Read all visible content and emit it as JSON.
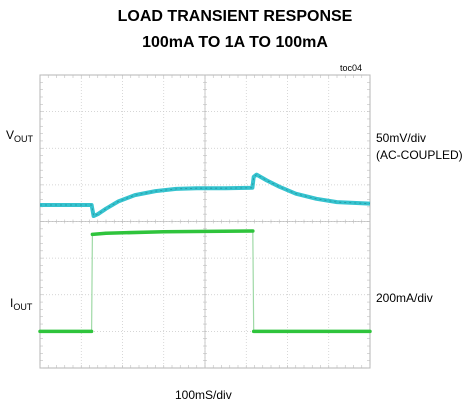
{
  "title_line1": "LOAD TRANSIENT  RESPONSE",
  "title_line2": "100mA TO 1A TO 100mA",
  "figure_id": "toc04",
  "labels": {
    "vout_main": "V",
    "vout_sub": "OUT",
    "vout_scale": "50mV/div",
    "vout_coupling": "(AC-COUPLED)",
    "iout_main": "I",
    "iout_sub": "OUT",
    "iout_scale": "200mA/div",
    "time_scale": "100mS/div"
  },
  "chart_data": {
    "type": "line",
    "grid": true,
    "divisions": {
      "x": 8,
      "y": 8
    },
    "x_range_div": [
      0,
      8
    ],
    "series": [
      {
        "key": "vout",
        "color": "#35c3cf",
        "points": [
          [
            0,
            4.45
          ],
          [
            1.25,
            4.45
          ],
          [
            1.3,
            4.15
          ],
          [
            1.4,
            4.2
          ],
          [
            1.6,
            4.35
          ],
          [
            1.9,
            4.55
          ],
          [
            2.3,
            4.72
          ],
          [
            2.8,
            4.83
          ],
          [
            3.3,
            4.89
          ],
          [
            3.8,
            4.91
          ],
          [
            4.5,
            4.91
          ],
          [
            5.15,
            4.92
          ],
          [
            5.18,
            5.22
          ],
          [
            5.25,
            5.28
          ],
          [
            5.5,
            5.12
          ],
          [
            5.8,
            4.95
          ],
          [
            6.2,
            4.76
          ],
          [
            6.7,
            4.62
          ],
          [
            7.2,
            4.53
          ],
          [
            8.0,
            4.49
          ]
        ]
      },
      {
        "key": "iout",
        "color": "#2fc43c",
        "points": [
          [
            0,
            1.0
          ],
          [
            1.25,
            1.0
          ],
          [
            1.27,
            3.65
          ],
          [
            1.6,
            3.68
          ],
          [
            3.0,
            3.72
          ],
          [
            5.16,
            3.74
          ],
          [
            5.18,
            1.0
          ],
          [
            8.0,
            1.0
          ]
        ]
      }
    ]
  }
}
